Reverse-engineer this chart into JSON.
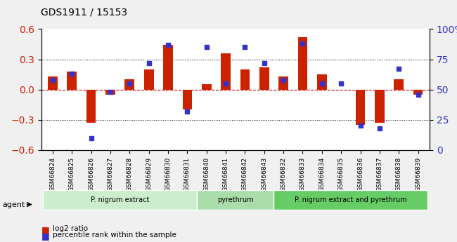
{
  "title": "GDS1911 / 15153",
  "samples": [
    "GSM66824",
    "GSM66825",
    "GSM66826",
    "GSM66827",
    "GSM66828",
    "GSM66829",
    "GSM66830",
    "GSM66831",
    "GSM66840",
    "GSM66841",
    "GSM66842",
    "GSM66843",
    "GSM66832",
    "GSM66833",
    "GSM66834",
    "GSM66835",
    "GSM66836",
    "GSM66837",
    "GSM66838",
    "GSM66839"
  ],
  "log2_ratio": [
    0.13,
    0.18,
    -0.33,
    -0.05,
    0.1,
    0.2,
    0.44,
    -0.2,
    0.05,
    0.36,
    0.2,
    0.22,
    0.13,
    0.52,
    0.15,
    0.0,
    -0.35,
    -0.33,
    0.1,
    -0.05
  ],
  "percentile": [
    58,
    63,
    10,
    48,
    55,
    72,
    87,
    32,
    85,
    55,
    85,
    72,
    58,
    88,
    55,
    55,
    20,
    18,
    67,
    46
  ],
  "bar_color": "#cc2200",
  "dot_color": "#3333cc",
  "ylim": [
    -0.6,
    0.6
  ],
  "yticks_left": [
    -0.6,
    -0.3,
    0.0,
    0.3,
    0.6
  ],
  "yticks_right": [
    0,
    25,
    50,
    75,
    100
  ],
  "groups": [
    {
      "label": "P. nigrum extract",
      "start": 0,
      "end": 8,
      "color": "#cceecc"
    },
    {
      "label": "pyrethrum",
      "start": 8,
      "end": 12,
      "color": "#aaddaa"
    },
    {
      "label": "P. nigrum extract and pyrethrum",
      "start": 12,
      "end": 20,
      "color": "#66cc66"
    }
  ],
  "agent_label": "agent",
  "legend_bar_label": "log2 ratio",
  "legend_dot_label": "percentile rank within the sample",
  "bg_color": "#f0f0f0",
  "plot_bg": "#ffffff",
  "grid_color": "#000000",
  "zero_line_color": "#cc0000"
}
